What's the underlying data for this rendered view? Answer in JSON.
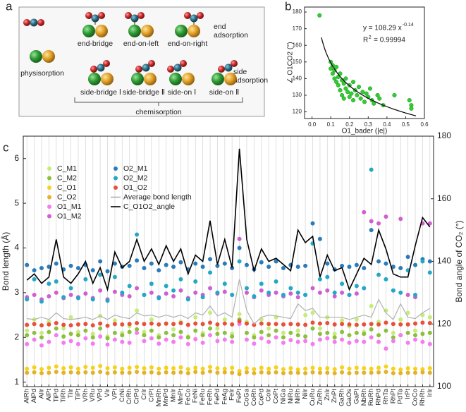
{
  "figure_a": {
    "panel_label": "a",
    "physisorption": "physisorption",
    "end_configs": [
      "end-bridge",
      "end-on-left",
      "end-on-right"
    ],
    "end_adsorption": [
      "end",
      "adsorption"
    ],
    "side_configs": [
      "side-bridge Ⅰ",
      "side-bridge Ⅱ",
      "side-on Ⅰ",
      "side-on Ⅱ"
    ],
    "side_adsorption": [
      "side",
      "adsorption"
    ],
    "chemisorption": "chemisorption"
  },
  "chart_data": [
    {
      "type": "scatter",
      "panel_label": "b",
      "x_label": "O1_bader (|e|)",
      "y_label": "∠ O1CO2 (°)",
      "color": "#33cc33",
      "x": [
        0.04,
        0.1,
        0.1,
        0.11,
        0.11,
        0.12,
        0.12,
        0.13,
        0.13,
        0.14,
        0.14,
        0.15,
        0.15,
        0.16,
        0.16,
        0.17,
        0.17,
        0.18,
        0.18,
        0.19,
        0.2,
        0.2,
        0.21,
        0.22,
        0.22,
        0.23,
        0.24,
        0.25,
        0.26,
        0.27,
        0.28,
        0.29,
        0.3,
        0.31,
        0.32,
        0.33,
        0.35,
        0.36,
        0.38,
        0.44,
        0.52,
        0.53,
        0.53
      ],
      "values": [
        178,
        150,
        146,
        148,
        143,
        145,
        140,
        147,
        138,
        141,
        136,
        143,
        133,
        139,
        130,
        137,
        128,
        140,
        134,
        132,
        136,
        129,
        131,
        138,
        127,
        133,
        130,
        135,
        128,
        132,
        126,
        131,
        129,
        134,
        127,
        125,
        130,
        128,
        124,
        130,
        127,
        124,
        122
      ],
      "fit": {
        "equation": "y = 108.29 x",
        "coefficient": 108.29,
        "exponent": -0.14,
        "r2_label": "R",
        "r2_sup": "2",
        "r2_value": "= 0.99994",
        "color": "#111111"
      },
      "xlim": [
        -0.04,
        0.6
      ],
      "xticks": [
        {
          "value": 0,
          "label": "0.0"
        },
        0.1,
        0.2,
        0.3,
        0.4,
        0.5,
        0.6
      ],
      "ylim": [
        116,
        183
      ],
      "yticks": [
        120,
        130,
        140,
        150,
        160,
        170,
        180
      ]
    },
    {
      "type": "dot",
      "panel_label": "c",
      "y_label": "Bond length (Å)",
      "y2_label": "Bond angle of CO₂ (°)",
      "grid": true,
      "legend": "upper left",
      "legend_columns": 2,
      "categories": [
        "AlRh",
        "AlPd",
        "AlIr",
        "AlPt",
        "TiPd",
        "TiRh",
        "TiIr",
        "TiPt",
        "VRh",
        "VRu",
        "VPd",
        "VIr",
        "VPt",
        "CrNi",
        "CrRh",
        "CrPd",
        "CrIr",
        "CrPt",
        "MnRh",
        "MnPd",
        "MnIr",
        "MnPt",
        "FeCo",
        "FeNi",
        "FeRu",
        "FeRh",
        "FePd",
        "FeAg",
        "FeIr",
        "FePt",
        "CoGa",
        "CoRh",
        "CoPd",
        "CoIr",
        "CoPt",
        "NiGa",
        "NiRu",
        "NiRh",
        "NiIr",
        "CuRu",
        "ZnRh",
        "ZnIr",
        "ZnPt",
        "GaRh",
        "GaOs",
        "GaPt",
        "NbRh",
        "RuRh",
        "RhPd",
        "RhTa",
        "RhPt",
        "PdTa",
        "IrPt",
        "CoCo",
        "RhRh",
        "IrIr"
      ],
      "ylim": [
        0.9,
        6.5
      ],
      "yticks": [
        1,
        2,
        3,
        4,
        5,
        6
      ],
      "y2lim": [
        100,
        180
      ],
      "y2ticks": [
        100,
        120,
        140,
        160,
        180
      ],
      "series": [
        {
          "name": "C_M1",
          "kind": "dot",
          "color": "#c6ec78",
          "values": [
            2.15,
            2.4,
            2.1,
            2.35,
            2.05,
            2.2,
            2.45,
            2.12,
            2.3,
            2.08,
            2.48,
            2.02,
            2.38,
            2.1,
            2.25,
            2.6,
            2.12,
            2.4,
            2.05,
            2.3,
            2.18,
            2.35,
            2.02,
            2.45,
            2.1,
            2.55,
            2.2,
            2.4,
            2.08,
            2.52,
            2.35,
            2.05,
            2.4,
            2.2,
            2.45,
            2.1,
            2.3,
            2.15,
            2.5,
            2.55,
            2.2,
            2.45,
            2.08,
            2.38,
            2.25,
            2.4,
            2.12,
            2.7,
            2.35,
            2.6,
            2.1,
            2.4,
            2.55,
            2.15,
            2.5,
            2.45
          ]
        },
        {
          "name": "C_M2",
          "kind": "dot",
          "color": "#8bbf3c",
          "values": [
            2.05,
            2.1,
            2.0,
            2.12,
            2.2,
            2.02,
            2.08,
            2.05,
            2.15,
            2.0,
            2.2,
            1.98,
            2.1,
            2.05,
            2.12,
            2.18,
            2.05,
            2.15,
            2.0,
            2.1,
            2.05,
            2.12,
            2.0,
            2.15,
            2.05,
            2.2,
            2.08,
            2.1,
            2.02,
            2.4,
            2.1,
            2.0,
            2.12,
            2.05,
            2.15,
            2.0,
            2.1,
            2.05,
            2.02,
            2.2,
            2.08,
            2.1,
            2.0,
            2.12,
            2.05,
            2.1,
            2.08,
            2.18,
            2.05,
            2.15,
            2.0,
            2.05,
            2.1,
            2.05,
            2.08,
            2.1
          ]
        },
        {
          "name": "C_O1",
          "kind": "dot",
          "color": "#f5d21c",
          "values": [
            1.3,
            1.33,
            1.29,
            1.32,
            1.35,
            1.31,
            1.33,
            1.3,
            1.34,
            1.32,
            1.36,
            1.31,
            1.33,
            1.3,
            1.32,
            1.34,
            1.31,
            1.33,
            1.3,
            1.32,
            1.31,
            1.33,
            1.29,
            1.32,
            1.3,
            1.34,
            1.31,
            1.3,
            1.32,
            1.25,
            1.31,
            1.29,
            1.32,
            1.3,
            1.33,
            1.29,
            1.31,
            1.28,
            1.3,
            1.32,
            1.3,
            1.31,
            1.29,
            1.33,
            1.3,
            1.32,
            1.31,
            1.3,
            1.32,
            1.35,
            1.3,
            1.28,
            1.31,
            1.3,
            1.29,
            1.31
          ]
        },
        {
          "name": "C_O2",
          "kind": "dot",
          "color": "#e3b22a",
          "values": [
            1.21,
            1.22,
            1.2,
            1.21,
            1.23,
            1.21,
            1.22,
            1.21,
            1.22,
            1.21,
            1.23,
            1.2,
            1.22,
            1.21,
            1.21,
            1.23,
            1.21,
            1.22,
            1.2,
            1.22,
            1.21,
            1.22,
            1.2,
            1.23,
            1.21,
            1.24,
            1.21,
            1.22,
            1.21,
            1.18,
            1.22,
            1.2,
            1.22,
            1.21,
            1.22,
            1.2,
            1.21,
            1.21,
            1.2,
            1.22,
            1.21,
            1.21,
            1.2,
            1.22,
            1.2,
            1.21,
            1.21,
            1.21,
            1.22,
            1.23,
            1.2,
            1.2,
            1.21,
            1.21,
            1.22,
            1.21
          ]
        },
        {
          "name": "O1_M1",
          "kind": "dot",
          "color": "#f27cf0",
          "values": [
            1.85,
            1.95,
            1.82,
            1.9,
            2.05,
            1.88,
            1.92,
            1.85,
            1.98,
            1.86,
            2.02,
            1.84,
            1.95,
            1.9,
            1.88,
            2.1,
            1.92,
            1.98,
            1.86,
            1.95,
            1.9,
            2.0,
            1.85,
            1.96,
            1.88,
            2.05,
            1.92,
            1.95,
            1.9,
            2.3,
            1.95,
            1.86,
            1.98,
            1.9,
            2.0,
            1.88,
            1.94,
            1.9,
            1.92,
            1.85,
            1.95,
            1.98,
            1.9,
            1.95,
            1.88,
            1.92,
            1.9,
            2.0,
            1.9,
            1.75,
            1.92,
            2.05,
            1.88,
            1.95,
            1.9,
            1.85
          ]
        },
        {
          "name": "O1_M2",
          "kind": "dot",
          "color": "#cf5fd0",
          "values": [
            2.9,
            2.95,
            2.85,
            2.92,
            3.0,
            2.88,
            2.95,
            2.9,
            2.98,
            2.88,
            3.05,
            2.85,
            3.02,
            2.95,
            2.92,
            3.1,
            2.95,
            3.0,
            2.9,
            2.98,
            2.92,
            3.05,
            2.88,
            3.0,
            2.95,
            3.1,
            2.98,
            3.02,
            2.95,
            4.2,
            3.0,
            2.9,
            3.05,
            2.95,
            3.0,
            2.92,
            2.98,
            2.9,
            2.95,
            3.1,
            3.0,
            3.05,
            2.92,
            3.0,
            2.95,
            2.98,
            4.8,
            4.6,
            4.55,
            4.7,
            3.05,
            4.65,
            2.95,
            2.9,
            4.55,
            4.55
          ]
        },
        {
          "name": "O2_M1",
          "kind": "dot",
          "color": "#2b7bb9",
          "values": [
            3.62,
            3.5,
            3.55,
            3.58,
            3.65,
            3.52,
            3.6,
            3.55,
            3.62,
            3.5,
            3.7,
            3.48,
            3.65,
            3.58,
            3.6,
            3.72,
            3.55,
            3.65,
            3.5,
            3.62,
            3.58,
            3.68,
            3.52,
            3.65,
            3.58,
            3.75,
            3.6,
            3.65,
            3.55,
            4.0,
            3.62,
            3.52,
            3.68,
            3.58,
            3.7,
            3.55,
            3.62,
            3.58,
            3.6,
            4.55,
            4.2,
            3.65,
            3.52,
            3.6,
            3.58,
            3.62,
            3.55,
            4.4,
            3.7,
            3.65,
            3.58,
            3.55,
            3.8,
            3.62,
            3.75,
            3.7
          ]
        },
        {
          "name": "O2_M2",
          "kind": "dot",
          "color": "#22a8c5",
          "values": [
            2.85,
            3.3,
            2.8,
            3.2,
            3.25,
            2.9,
            3.1,
            2.88,
            3.3,
            2.85,
            3.4,
            2.82,
            3.35,
            3.0,
            3.15,
            4.3,
            2.95,
            3.2,
            2.88,
            3.15,
            3.05,
            3.3,
            2.85,
            3.25,
            2.9,
            3.45,
            3.0,
            3.2,
            2.95,
            3.7,
            3.1,
            2.92,
            3.2,
            3.0,
            3.25,
            2.95,
            3.1,
            3.0,
            2.95,
            4.1,
            3.3,
            3.35,
            3.0,
            3.2,
            2.95,
            3.15,
            3.1,
            5.75,
            3.4,
            3.3,
            3.05,
            3.0,
            3.5,
            2.95,
            3.7,
            3.45
          ]
        },
        {
          "name": "O1_O2",
          "kind": "dot",
          "color": "#e9503a",
          "values": [
            2.28,
            2.3,
            2.27,
            2.29,
            2.32,
            2.28,
            2.27,
            2.29,
            2.3,
            2.27,
            2.31,
            2.26,
            2.3,
            2.29,
            2.3,
            2.32,
            2.3,
            2.31,
            2.29,
            2.31,
            2.3,
            2.32,
            2.28,
            2.31,
            2.3,
            2.33,
            2.29,
            2.31,
            2.29,
            2.36,
            2.31,
            2.28,
            2.31,
            2.3,
            2.3,
            2.29,
            2.3,
            2.29,
            2.28,
            2.33,
            2.31,
            2.32,
            2.29,
            2.3,
            2.29,
            2.28,
            2.29,
            2.3,
            2.29,
            2.33,
            2.3,
            2.29,
            2.29,
            2.31,
            2.33,
            2.32
          ]
        },
        {
          "name": "Average bond length",
          "kind": "line",
          "color": "#b0b0b0",
          "values": [
            2.42,
            2.4,
            2.45,
            2.4,
            2.55,
            2.42,
            2.4,
            2.42,
            2.45,
            2.4,
            2.48,
            2.4,
            2.5,
            2.45,
            2.42,
            2.55,
            2.48,
            2.5,
            2.45,
            2.5,
            2.45,
            2.5,
            2.42,
            2.55,
            2.5,
            2.7,
            2.48,
            2.55,
            2.45,
            3.3,
            2.6,
            2.3,
            2.45,
            2.5,
            2.48,
            2.45,
            2.42,
            2.75,
            2.6,
            2.65,
            2.45,
            2.45,
            2.45,
            2.45,
            2.4,
            2.45,
            2.5,
            2.45,
            2.85,
            2.55,
            2.4,
            2.75,
            2.45,
            2.42,
            2.55,
            2.65
          ]
        },
        {
          "name": "C_O1O2_angle",
          "kind": "line",
          "axis": "y2",
          "color": "#000000",
          "values": [
            134,
            136,
            133,
            135,
            147,
            135,
            133,
            136,
            140,
            133,
            138,
            131,
            143,
            138,
            140,
            147,
            140,
            144,
            139,
            145,
            140,
            144,
            136,
            142,
            140,
            153,
            139,
            147,
            138,
            176,
            147,
            137,
            144,
            140,
            141,
            139,
            137,
            150,
            146,
            148,
            135,
            142,
            137,
            138,
            131,
            136,
            141,
            139,
            150,
            144,
            136,
            135,
            135,
            145,
            154,
            151
          ]
        }
      ]
    }
  ]
}
